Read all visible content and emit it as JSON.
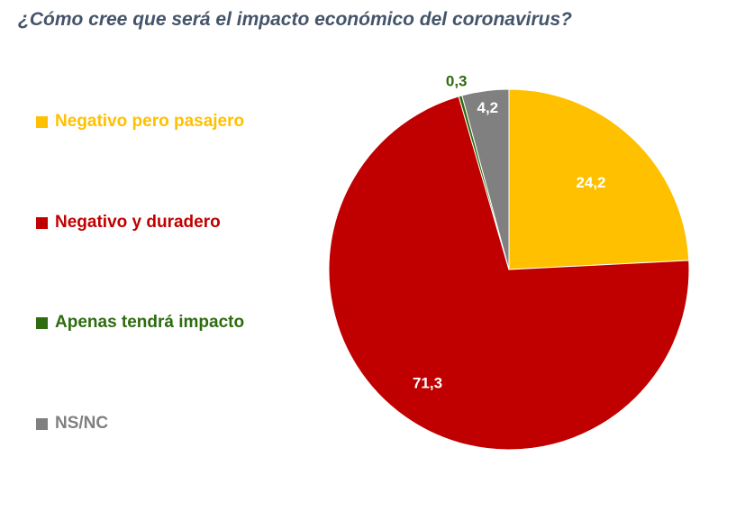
{
  "title": "¿Cómo cree que será el impacto económico del coronavirus?",
  "chart_data": {
    "type": "pie",
    "title": "¿Cómo cree que será el impacto económico del coronavirus?",
    "legend_position": "left",
    "slices": [
      {
        "label": "Negativo pero pasajero",
        "value": 24.2,
        "display": "24,2",
        "color": "#ffc000",
        "label_color": "#ffffff"
      },
      {
        "label": "Negativo y duradero",
        "value": 71.3,
        "display": "71,3",
        "color": "#c00000",
        "label_color": "#ffffff"
      },
      {
        "label": "Apenas tendrá impacto",
        "value": 0.3,
        "display": "0,3",
        "color": "#2e6b0f",
        "label_color": "#2e6b0f"
      },
      {
        "label": "NS/NC",
        "value": 4.2,
        "display": "4,2",
        "color": "#808080",
        "label_color": "#ffffff"
      }
    ]
  }
}
